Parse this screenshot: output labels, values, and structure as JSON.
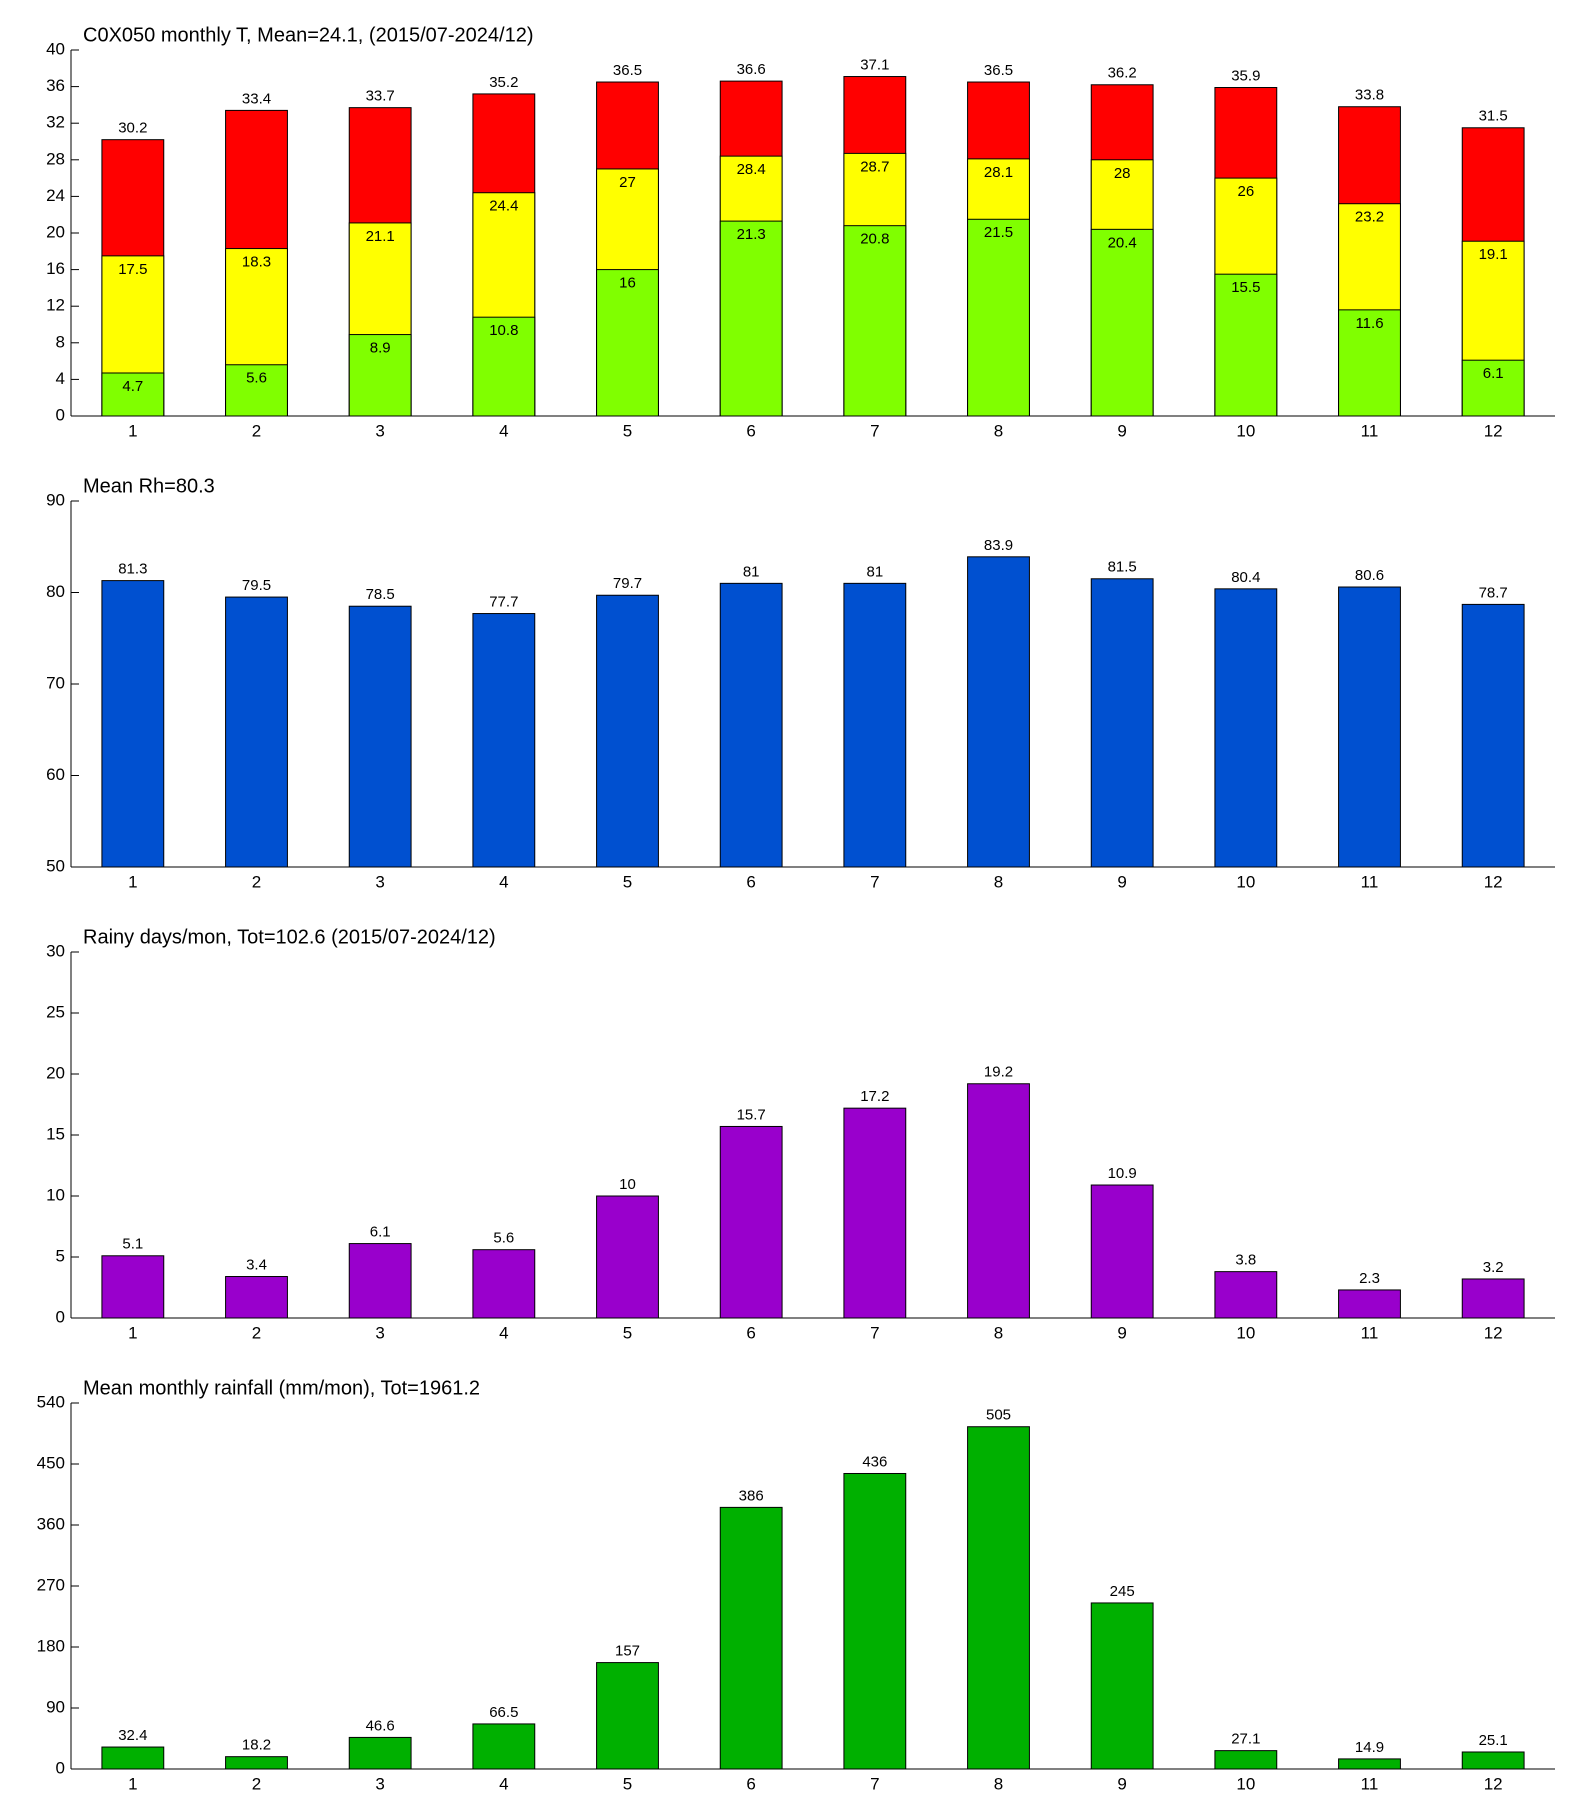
{
  "chart_data": [
    {
      "type": "bar",
      "title": "C0X050 monthly T, Mean=24.1, (2015/07-2024/12)",
      "categories": [
        "1",
        "2",
        "3",
        "4",
        "5",
        "6",
        "7",
        "8",
        "9",
        "10",
        "11",
        "12"
      ],
      "series": [
        {
          "color": "#ff0000",
          "values": [
            30.2,
            33.4,
            33.7,
            35.2,
            36.5,
            36.6,
            37.1,
            36.5,
            36.2,
            35.9,
            33.8,
            31.5
          ]
        },
        {
          "color": "#ffff00",
          "values": [
            17.5,
            18.3,
            21.1,
            24.4,
            27,
            28.4,
            28.7,
            28.1,
            28,
            26,
            23.2,
            19.1
          ]
        },
        {
          "color": "#80ff00",
          "values": [
            4.7,
            5.6,
            8.9,
            10.8,
            16,
            21.3,
            20.8,
            21.5,
            20.4,
            15.5,
            11.6,
            6.1
          ]
        }
      ],
      "ylim": [
        0,
        40
      ],
      "yticks": [
        0,
        4,
        8,
        12,
        16,
        20,
        24,
        28,
        32,
        36,
        40
      ]
    },
    {
      "type": "bar",
      "title": "Mean Rh=80.3",
      "categories": [
        "1",
        "2",
        "3",
        "4",
        "5",
        "6",
        "7",
        "8",
        "9",
        "10",
        "11",
        "12"
      ],
      "values": [
        81.3,
        79.5,
        78.5,
        77.7,
        79.7,
        81,
        81,
        83.9,
        81.5,
        80.4,
        80.6,
        78.7
      ],
      "color": "#0050d0",
      "ylim": [
        50,
        90
      ],
      "yticks": [
        50,
        60,
        70,
        80,
        90
      ]
    },
    {
      "type": "bar",
      "title": "Rainy days/mon, Tot=102.6 (2015/07-2024/12)",
      "categories": [
        "1",
        "2",
        "3",
        "4",
        "5",
        "6",
        "7",
        "8",
        "9",
        "10",
        "11",
        "12"
      ],
      "values": [
        5.1,
        3.4,
        6.1,
        5.6,
        10,
        15.7,
        17.2,
        19.2,
        10.9,
        3.8,
        2.3,
        3.2
      ],
      "color": "#9900cc",
      "ylim": [
        0,
        30
      ],
      "yticks": [
        0,
        5,
        10,
        15,
        20,
        25,
        30
      ]
    },
    {
      "type": "bar",
      "title": "Mean monthly rainfall (mm/mon), Tot=1961.2",
      "categories": [
        "1",
        "2",
        "3",
        "4",
        "5",
        "6",
        "7",
        "8",
        "9",
        "10",
        "11",
        "12"
      ],
      "values": [
        32.4,
        18.2,
        46.6,
        66.5,
        157,
        386,
        436,
        505,
        245,
        27.1,
        14.9,
        25.1
      ],
      "color": "#00b000",
      "ylim": [
        0,
        540
      ],
      "yticks": [
        0,
        90,
        180,
        270,
        360,
        450,
        540
      ]
    }
  ]
}
